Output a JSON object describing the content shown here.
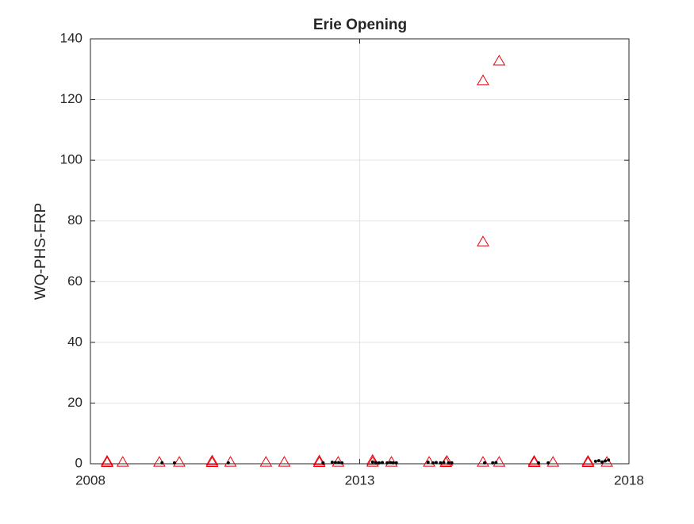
{
  "chart_data": {
    "type": "scatter",
    "title": "Erie Opening",
    "y_label": "WQ-PHS-FRP",
    "xlim": [
      2008,
      2018
    ],
    "xticks": [
      2008,
      2013,
      2018
    ],
    "ylim": [
      0,
      140
    ],
    "yticks": [
      0,
      20,
      40,
      60,
      80,
      100,
      120,
      140
    ],
    "grid": true,
    "series": [
      {
        "color": "#e8000b",
        "marker": "triangle",
        "x": [
          2008.31,
          2008.31,
          2008.6,
          2009.28,
          2009.65,
          2010.26,
          2010.26,
          2010.6,
          2011.26,
          2011.6,
          2012.25,
          2012.25,
          2012.6,
          2013.24,
          2013.24,
          2013.59,
          2014.29,
          2014.62,
          2014.6,
          2015.29,
          2015.29,
          2015.29,
          2015.59,
          2015.59,
          2016.24,
          2016.24,
          2016.59,
          2017.24,
          2017.24,
          2017.59
        ],
        "y": [
          0.8,
          0.4,
          0.5,
          0.5,
          0.5,
          0.9,
          0.4,
          0.5,
          0.5,
          0.5,
          0.9,
          0.4,
          0.5,
          1.1,
          0.5,
          0.5,
          0.5,
          0.8,
          0.4,
          126.2,
          73.1,
          0.5,
          132.7,
          0.5,
          0.8,
          0.4,
          0.5,
          0.8,
          0.4,
          0.5
        ]
      },
      {
        "color": "#000000",
        "marker": "dot",
        "x": [
          2009.33,
          2009.56,
          2010.56,
          2012.32,
          2012.49,
          2012.55,
          2012.61,
          2012.67,
          2013.24,
          2013.3,
          2013.36,
          2013.42,
          2013.51,
          2013.57,
          2013.62,
          2013.68,
          2014.27,
          2014.36,
          2014.42,
          2014.5,
          2014.56,
          2014.65,
          2014.71,
          2015.32,
          2015.47,
          2015.53,
          2016.32,
          2016.5,
          2017.38,
          2017.44,
          2017.5,
          2017.56,
          2017.62
        ],
        "y": [
          0.3,
          0.3,
          0.3,
          0.3,
          0.5,
          0.4,
          0.4,
          0.3,
          0.6,
          0.4,
          0.3,
          0.4,
          0.3,
          0.4,
          0.3,
          0.3,
          0.5,
          0.3,
          0.4,
          0.3,
          0.4,
          0.3,
          0.3,
          0.3,
          0.3,
          0.4,
          0.3,
          0.3,
          0.8,
          1.0,
          0.6,
          0.9,
          1.2
        ]
      }
    ]
  }
}
